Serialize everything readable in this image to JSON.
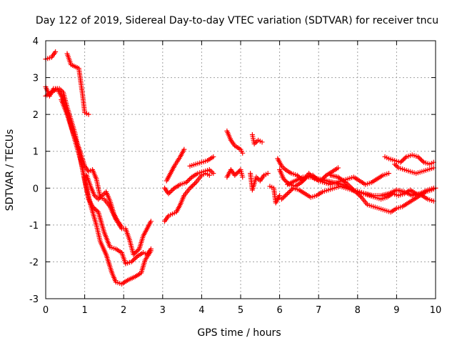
{
  "chart_data": {
    "type": "scatter",
    "title": "Day 122 of 2019, Sidereal Day-to-day VTEC variation (SDTVAR) for receiver tncu",
    "xlabel": "GPS time / hours",
    "ylabel": "SDTVAR / TECUs",
    "xlim": [
      0,
      10
    ],
    "ylim": [
      -3,
      4
    ],
    "xticks": [
      0,
      1,
      2,
      3,
      4,
      5,
      6,
      7,
      8,
      9,
      10
    ],
    "yticks": [
      -3,
      -2,
      -1,
      0,
      1,
      2,
      3,
      4
    ],
    "xtick_labels": [
      "0",
      "1",
      "2",
      "3",
      "4",
      "5",
      "6",
      "7",
      "8",
      "9",
      "10"
    ],
    "ytick_labels": [
      "-3",
      "-2",
      "-1",
      "0",
      "1",
      "2",
      "3",
      "4"
    ],
    "grid": true,
    "marker": "+",
    "color": "#ff0000",
    "series": [
      {
        "name": "track-1",
        "points": [
          [
            0,
            3.5
          ],
          [
            0.15,
            3.55
          ],
          [
            0.25,
            3.7
          ]
        ]
      },
      {
        "name": "track-2",
        "points": [
          [
            0.55,
            3.65
          ],
          [
            0.65,
            3.35
          ],
          [
            0.85,
            3.25
          ],
          [
            0.95,
            2.5
          ],
          [
            1.0,
            2.05
          ],
          [
            1.1,
            2.0
          ]
        ]
      },
      {
        "name": "track-3",
        "points": [
          [
            0,
            2.75
          ],
          [
            0.1,
            2.5
          ],
          [
            0.2,
            2.7
          ],
          [
            0.35,
            2.7
          ],
          [
            0.45,
            2.6
          ],
          [
            0.55,
            2.2
          ],
          [
            0.65,
            1.85
          ],
          [
            0.75,
            1.5
          ],
          [
            0.85,
            1.0
          ],
          [
            0.95,
            0.5
          ],
          [
            1.05,
            0.0
          ],
          [
            1.15,
            -0.45
          ],
          [
            1.3,
            -1.0
          ],
          [
            1.4,
            -1.45
          ],
          [
            1.55,
            -1.8
          ],
          [
            1.7,
            -2.3
          ],
          [
            1.8,
            -2.55
          ],
          [
            1.95,
            -2.6
          ],
          [
            2.1,
            -2.5
          ],
          [
            2.3,
            -2.4
          ],
          [
            2.45,
            -2.3
          ],
          [
            2.55,
            -1.95
          ],
          [
            2.7,
            -1.7
          ]
        ]
      },
      {
        "name": "track-4",
        "points": [
          [
            0,
            2.5
          ],
          [
            0.15,
            2.6
          ],
          [
            0.3,
            2.7
          ],
          [
            0.45,
            2.4
          ],
          [
            0.6,
            1.9
          ],
          [
            0.75,
            1.3
          ],
          [
            0.9,
            0.75
          ],
          [
            1.0,
            0.2
          ],
          [
            1.1,
            -0.3
          ],
          [
            1.2,
            -0.5
          ],
          [
            1.35,
            -0.65
          ],
          [
            1.5,
            -1.2
          ],
          [
            1.65,
            -1.6
          ],
          [
            1.8,
            -1.65
          ],
          [
            1.95,
            -1.75
          ],
          [
            2.05,
            -2.05
          ],
          [
            2.2,
            -2.0
          ],
          [
            2.35,
            -1.85
          ],
          [
            2.5,
            -1.75
          ],
          [
            2.6,
            -1.8
          ],
          [
            2.7,
            -1.65
          ]
        ]
      },
      {
        "name": "track-5",
        "points": [
          [
            0.4,
            2.4
          ],
          [
            0.55,
            2.0
          ],
          [
            0.7,
            1.5
          ],
          [
            0.85,
            1.1
          ],
          [
            1.0,
            0.6
          ],
          [
            1.1,
            0.45
          ],
          [
            1.2,
            0.5
          ],
          [
            1.3,
            0.25
          ],
          [
            1.4,
            -0.25
          ],
          [
            1.5,
            -0.3
          ],
          [
            1.65,
            -0.5
          ],
          [
            1.8,
            -0.85
          ],
          [
            1.95,
            -1.1
          ],
          [
            2.05,
            -1.1
          ],
          [
            2.15,
            -1.4
          ],
          [
            2.25,
            -1.8
          ],
          [
            2.4,
            -1.65
          ],
          [
            2.5,
            -1.3
          ],
          [
            2.6,
            -1.1
          ],
          [
            2.7,
            -0.9
          ]
        ]
      },
      {
        "name": "track-6",
        "points": [
          [
            1.05,
            0.35
          ],
          [
            1.15,
            0.05
          ],
          [
            1.25,
            -0.2
          ],
          [
            1.35,
            -0.3
          ],
          [
            1.45,
            -0.2
          ],
          [
            1.55,
            -0.1
          ],
          [
            1.65,
            -0.35
          ],
          [
            1.75,
            -0.7
          ],
          [
            1.85,
            -0.9
          ],
          [
            1.95,
            -1.05
          ]
        ]
      },
      {
        "name": "track-7",
        "points": [
          [
            3.05,
            -0.9
          ],
          [
            3.15,
            -0.75
          ],
          [
            3.25,
            -0.7
          ],
          [
            3.35,
            -0.65
          ],
          [
            3.45,
            -0.45
          ],
          [
            3.55,
            -0.2
          ],
          [
            3.7,
            0.0
          ],
          [
            3.85,
            0.15
          ],
          [
            4.0,
            0.35
          ],
          [
            4.1,
            0.4
          ],
          [
            4.2,
            0.35
          ]
        ]
      },
      {
        "name": "track-8",
        "points": [
          [
            3.05,
            0.0
          ],
          [
            3.15,
            -0.15
          ],
          [
            3.3,
            0.0
          ],
          [
            3.45,
            0.1
          ],
          [
            3.6,
            0.15
          ],
          [
            3.75,
            0.3
          ],
          [
            3.9,
            0.4
          ],
          [
            4.05,
            0.45
          ],
          [
            4.2,
            0.5
          ],
          [
            4.3,
            0.4
          ]
        ]
      },
      {
        "name": "track-9",
        "points": [
          [
            3.1,
            0.2
          ],
          [
            3.2,
            0.4
          ],
          [
            3.3,
            0.6
          ],
          [
            3.45,
            0.85
          ],
          [
            3.55,
            1.05
          ]
        ]
      },
      {
        "name": "track-10",
        "points": [
          [
            3.7,
            0.6
          ],
          [
            3.85,
            0.65
          ],
          [
            4.0,
            0.7
          ],
          [
            4.15,
            0.75
          ],
          [
            4.3,
            0.85
          ]
        ]
      },
      {
        "name": "track-11",
        "points": [
          [
            4.65,
            1.55
          ],
          [
            4.75,
            1.3
          ],
          [
            4.85,
            1.15
          ],
          [
            5.0,
            1.05
          ],
          [
            5.05,
            0.95
          ]
        ]
      },
      {
        "name": "track-12",
        "points": [
          [
            4.65,
            0.3
          ],
          [
            4.75,
            0.5
          ],
          [
            4.85,
            0.35
          ],
          [
            5.0,
            0.5
          ],
          [
            5.05,
            0.3
          ]
        ]
      },
      {
        "name": "track-13",
        "points": [
          [
            5.3,
            1.45
          ],
          [
            5.35,
            1.2
          ],
          [
            5.45,
            1.3
          ],
          [
            5.55,
            1.25
          ]
        ]
      },
      {
        "name": "track-14",
        "points": [
          [
            5.25,
            0.4
          ],
          [
            5.3,
            -0.05
          ],
          [
            5.4,
            0.3
          ],
          [
            5.5,
            0.2
          ],
          [
            5.6,
            0.35
          ],
          [
            5.7,
            0.4
          ]
        ]
      },
      {
        "name": "track-15",
        "points": [
          [
            5.75,
            0.05
          ],
          [
            5.85,
            0.0
          ],
          [
            5.9,
            -0.4
          ],
          [
            6.0,
            -0.2
          ]
        ]
      },
      {
        "name": "track-16",
        "points": [
          [
            5.95,
            0.8
          ],
          [
            6.05,
            0.6
          ],
          [
            6.15,
            0.5
          ],
          [
            6.3,
            0.4
          ],
          [
            6.45,
            0.35
          ],
          [
            6.6,
            0.2
          ],
          [
            6.75,
            0.4
          ],
          [
            6.9,
            0.25
          ],
          [
            7.05,
            0.2
          ],
          [
            7.2,
            0.35
          ],
          [
            7.35,
            0.45
          ],
          [
            7.5,
            0.55
          ]
        ]
      },
      {
        "name": "track-17",
        "points": [
          [
            6.0,
            0.5
          ],
          [
            6.1,
            0.25
          ],
          [
            6.25,
            0.1
          ],
          [
            6.4,
            0.05
          ],
          [
            6.55,
            0.15
          ],
          [
            6.7,
            0.3
          ],
          [
            6.85,
            0.35
          ],
          [
            7.0,
            0.2
          ],
          [
            7.15,
            0.15
          ],
          [
            7.3,
            0.1
          ],
          [
            7.45,
            0.15
          ],
          [
            7.6,
            0.2
          ],
          [
            7.75,
            0.25
          ],
          [
            7.9,
            0.3
          ],
          [
            8.05,
            0.2
          ],
          [
            8.2,
            0.1
          ],
          [
            8.35,
            0.15
          ],
          [
            8.5,
            0.25
          ],
          [
            8.65,
            0.35
          ],
          [
            8.8,
            0.4
          ]
        ]
      },
      {
        "name": "track-18",
        "points": [
          [
            6.05,
            -0.3
          ],
          [
            6.2,
            -0.15
          ],
          [
            6.35,
            0.0
          ],
          [
            6.5,
            -0.05
          ],
          [
            6.65,
            -0.15
          ],
          [
            6.8,
            -0.25
          ],
          [
            6.95,
            -0.2
          ],
          [
            7.1,
            -0.1
          ],
          [
            7.25,
            -0.05
          ],
          [
            7.4,
            0.0
          ],
          [
            7.55,
            0.05
          ],
          [
            7.7,
            0.0
          ],
          [
            7.85,
            -0.05
          ],
          [
            8.0,
            -0.1
          ],
          [
            8.15,
            -0.15
          ],
          [
            8.3,
            -0.2
          ],
          [
            8.45,
            -0.25
          ],
          [
            8.6,
            -0.3
          ],
          [
            8.75,
            -0.25
          ],
          [
            8.9,
            -0.15
          ],
          [
            9.05,
            -0.2
          ],
          [
            9.2,
            -0.15
          ],
          [
            9.35,
            -0.05
          ],
          [
            9.5,
            -0.15
          ],
          [
            9.65,
            -0.2
          ],
          [
            9.8,
            -0.3
          ],
          [
            9.95,
            -0.35
          ]
        ]
      },
      {
        "name": "track-19",
        "points": [
          [
            6.2,
            0.1
          ],
          [
            6.4,
            0.2
          ],
          [
            6.6,
            0.3
          ],
          [
            6.8,
            0.3
          ],
          [
            7.0,
            0.25
          ],
          [
            7.2,
            0.2
          ],
          [
            7.4,
            0.15
          ],
          [
            7.6,
            0.1
          ],
          [
            7.8,
            0.0
          ],
          [
            7.95,
            -0.1
          ],
          [
            8.1,
            -0.25
          ],
          [
            8.25,
            -0.45
          ],
          [
            8.4,
            -0.5
          ],
          [
            8.55,
            -0.55
          ],
          [
            8.7,
            -0.6
          ],
          [
            8.85,
            -0.65
          ],
          [
            9.0,
            -0.55
          ],
          [
            9.15,
            -0.5
          ],
          [
            9.3,
            -0.4
          ],
          [
            9.45,
            -0.3
          ],
          [
            9.6,
            -0.2
          ],
          [
            9.75,
            -0.1
          ],
          [
            9.9,
            -0.05
          ],
          [
            10.0,
            0.0
          ]
        ]
      },
      {
        "name": "track-20",
        "points": [
          [
            7.3,
            0.35
          ],
          [
            7.5,
            0.3
          ],
          [
            7.7,
            0.15
          ],
          [
            7.9,
            -0.05
          ],
          [
            8.05,
            -0.1
          ],
          [
            8.2,
            -0.15
          ],
          [
            8.4,
            -0.2
          ],
          [
            8.6,
            -0.2
          ],
          [
            8.8,
            -0.15
          ],
          [
            9.0,
            -0.05
          ],
          [
            9.2,
            -0.1
          ],
          [
            9.4,
            -0.2
          ],
          [
            9.6,
            -0.15
          ],
          [
            9.8,
            -0.05
          ],
          [
            9.95,
            0.0
          ]
        ]
      },
      {
        "name": "track-21",
        "points": [
          [
            8.7,
            0.85
          ],
          [
            8.8,
            0.8
          ],
          [
            8.95,
            0.75
          ],
          [
            9.1,
            0.7
          ],
          [
            9.25,
            0.85
          ],
          [
            9.4,
            0.9
          ],
          [
            9.55,
            0.85
          ],
          [
            9.7,
            0.7
          ],
          [
            9.85,
            0.65
          ],
          [
            9.95,
            0.7
          ]
        ]
      },
      {
        "name": "track-22",
        "points": [
          [
            8.95,
            0.65
          ],
          [
            9.05,
            0.55
          ],
          [
            9.2,
            0.5
          ],
          [
            9.35,
            0.45
          ],
          [
            9.5,
            0.4
          ],
          [
            9.65,
            0.45
          ],
          [
            9.8,
            0.5
          ],
          [
            9.95,
            0.55
          ]
        ]
      }
    ]
  }
}
